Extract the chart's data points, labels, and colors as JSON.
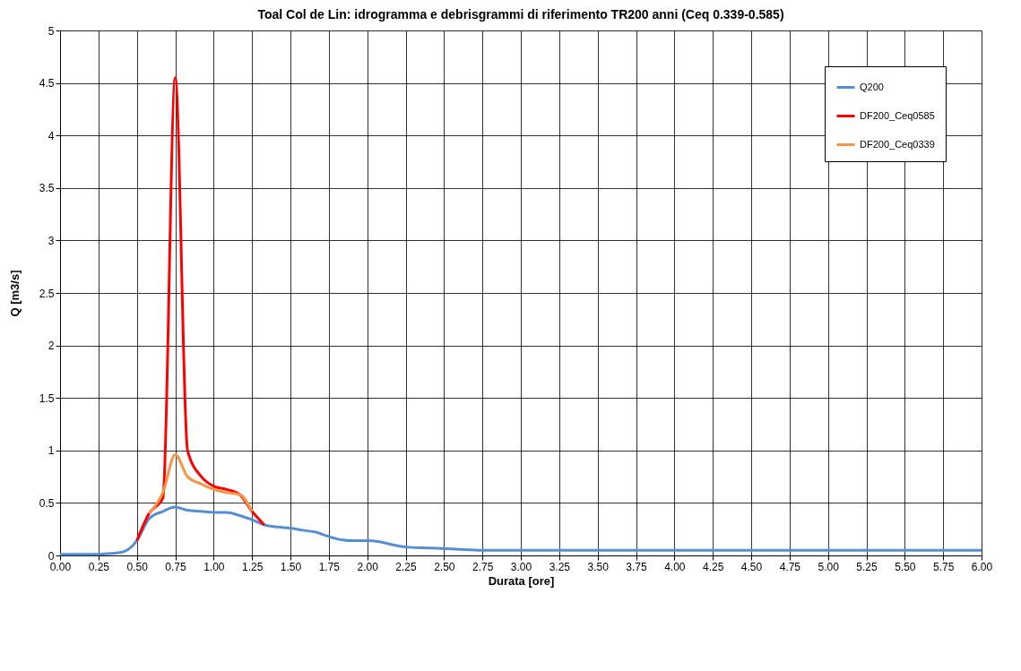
{
  "chart_data": {
    "type": "line",
    "title": "Toal Col de Lin: idrogramma e debrisgrammi di riferimento TR200 anni (Ceq 0.339-0.585)",
    "xlabel": "Durata [ore]",
    "ylabel": "Q [m3/s]",
    "xlim": [
      0,
      6
    ],
    "ylim": [
      0,
      5
    ],
    "xticks": [
      {
        "value": 0,
        "label": "0.00"
      },
      {
        "value": 0.25,
        "label": "0.25"
      },
      {
        "value": 0.5,
        "label": "0.50"
      },
      {
        "value": 0.75,
        "label": "0.75"
      },
      {
        "value": 1,
        "label": "1.00"
      },
      {
        "value": 1.25,
        "label": "1.25"
      },
      {
        "value": 1.5,
        "label": "1.50"
      },
      {
        "value": 1.75,
        "label": "1.75"
      },
      {
        "value": 2,
        "label": "2.00"
      },
      {
        "value": 2.25,
        "label": "2.25"
      },
      {
        "value": 2.5,
        "label": "2.50"
      },
      {
        "value": 2.75,
        "label": "2.75"
      },
      {
        "value": 3,
        "label": "3.00"
      },
      {
        "value": 3.25,
        "label": "3.25"
      },
      {
        "value": 3.5,
        "label": "3.50"
      },
      {
        "value": 3.75,
        "label": "3.75"
      },
      {
        "value": 4,
        "label": "4.00"
      },
      {
        "value": 4.25,
        "label": "4.25"
      },
      {
        "value": 4.5,
        "label": "4.50"
      },
      {
        "value": 4.75,
        "label": "4.75"
      },
      {
        "value": 5,
        "label": "5.00"
      },
      {
        "value": 5.25,
        "label": "5.25"
      },
      {
        "value": 5.5,
        "label": "5.50"
      },
      {
        "value": 5.75,
        "label": "5.75"
      },
      {
        "value": 6,
        "label": "6.00"
      }
    ],
    "yticks": [
      0,
      0.5,
      1,
      1.5,
      2,
      2.5,
      3,
      3.5,
      4,
      4.5,
      5
    ],
    "grid": true,
    "legend": "top right",
    "marker": "none",
    "line_style": "solid",
    "series": [
      {
        "name": "Q200",
        "color": "#558ed5",
        "x": [
          0,
          0.25,
          0.33,
          0.4,
          0.5,
          0.58,
          0.67,
          0.75,
          0.83,
          0.92,
          1.0,
          1.08,
          1.17,
          1.25,
          1.33,
          1.42,
          1.5,
          1.58,
          1.67,
          1.75,
          1.83,
          1.92,
          2.0,
          2.08,
          2.17,
          2.25,
          2.42,
          2.58,
          2.75,
          3.0,
          4.0,
          4.25,
          6.0
        ],
        "values": [
          0.01,
          0.01,
          0.02,
          0.03,
          0.14,
          0.35,
          0.42,
          0.46,
          0.43,
          0.42,
          0.41,
          0.41,
          0.38,
          0.34,
          0.29,
          0.27,
          0.26,
          0.24,
          0.22,
          0.18,
          0.15,
          0.14,
          0.14,
          0.13,
          0.1,
          0.08,
          0.07,
          0.06,
          0.05,
          0.05,
          0.05,
          0.05,
          0.05
        ]
      },
      {
        "name": "DF200_Ceq0585",
        "color": "#ff0000",
        "x": [
          0.5,
          0.58,
          0.67,
          0.75,
          0.83,
          0.92,
          1.0,
          1.08,
          1.17,
          1.25,
          1.33
        ],
        "values": [
          0.14,
          0.4,
          0.55,
          4.55,
          1.0,
          0.75,
          0.66,
          0.63,
          0.58,
          0.42,
          0.29
        ]
      },
      {
        "name": "DF200_Ceq0339",
        "color": "#f79646",
        "x": [
          0.58,
          0.67,
          0.75,
          0.83,
          0.92,
          1.0,
          1.08,
          1.17,
          1.25
        ],
        "values": [
          0.4,
          0.6,
          0.96,
          0.75,
          0.68,
          0.63,
          0.6,
          0.58,
          0.42
        ]
      }
    ]
  }
}
